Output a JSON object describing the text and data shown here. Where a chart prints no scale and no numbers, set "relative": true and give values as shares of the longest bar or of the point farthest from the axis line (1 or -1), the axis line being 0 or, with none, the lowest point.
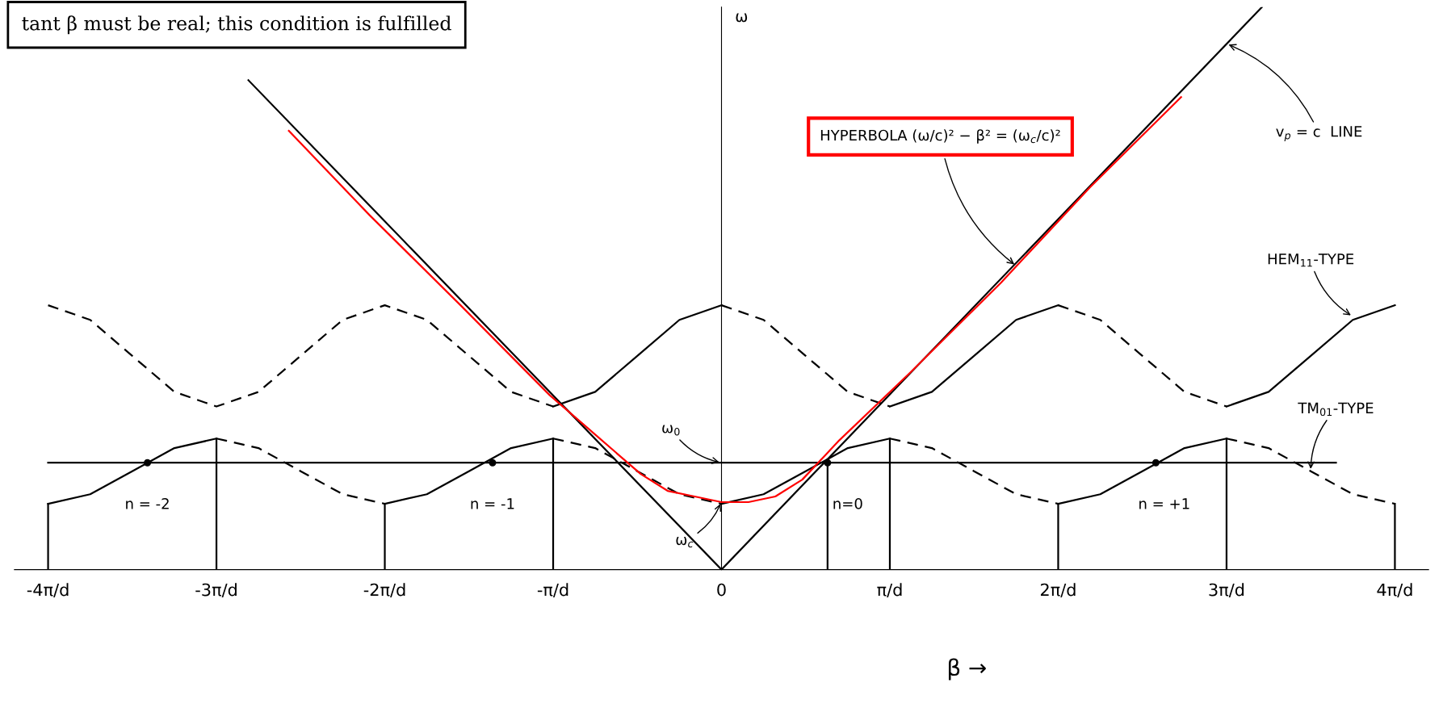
{
  "chart_data": {
    "type": "line",
    "relative": true,
    "ylabel": "ω",
    "xlabel": "β →",
    "xlim": [
      -4.2,
      4.2
    ],
    "xticks": [
      {
        "value": -4,
        "label": "-4π/d"
      },
      {
        "value": -3,
        "label": "-3π/d"
      },
      {
        "value": -2,
        "label": "-2π/d"
      },
      {
        "value": -1,
        "label": "-π/d"
      },
      0,
      {
        "value": 1,
        "label": "π/d"
      },
      {
        "value": 2,
        "label": "2π/d"
      },
      {
        "value": 3,
        "label": "3π/d"
      },
      {
        "value": 4,
        "label": "4π/d"
      }
    ],
    "tick_labels": "x",
    "grid": false,
    "legend": false,
    "marker": "none",
    "series": [
      {
        "type": "line",
        "color": "#000000",
        "line_style": "solid",
        "x": [
          -2.81,
          0,
          3.21
        ],
        "values": [
          0.87,
          0,
          1
        ]
      },
      {
        "type": "line",
        "color": "#000000",
        "line_style": "solid",
        "x": [
          -4,
          3.65
        ],
        "values": [
          0.19,
          0.19
        ]
      },
      {
        "color": "#000000",
        "line_style": "solid",
        "x": [
          -4,
          -4
        ],
        "values": [
          0,
          0.117
        ]
      },
      {
        "color": "#000000",
        "line_style": "solid",
        "x": [
          -3,
          -3
        ],
        "values": [
          0,
          0.233
        ]
      },
      {
        "color": "#000000",
        "line_style": "solid",
        "x": [
          -2,
          -2
        ],
        "values": [
          0,
          0.117
        ]
      },
      {
        "color": "#000000",
        "line_style": "solid",
        "x": [
          -1,
          -1
        ],
        "values": [
          0,
          0.233
        ]
      },
      {
        "color": "#000000",
        "line_style": "solid",
        "x": [
          0.63,
          0.63
        ],
        "values": [
          0,
          0.19
        ]
      },
      {
        "color": "#000000",
        "line_style": "solid",
        "x": [
          1,
          1
        ],
        "values": [
          0,
          0.233
        ]
      },
      {
        "color": "#000000",
        "line_style": "solid",
        "x": [
          2,
          2
        ],
        "values": [
          0,
          0.117
        ]
      },
      {
        "color": "#000000",
        "line_style": "solid",
        "x": [
          3,
          3
        ],
        "values": [
          0,
          0.233
        ]
      },
      {
        "color": "#000000",
        "line_style": "solid",
        "x": [
          4,
          4
        ],
        "values": [
          0,
          0.117
        ]
      },
      {
        "type": "line",
        "color": "#000000",
        "line_style": "dashed",
        "x": [
          -4,
          -3.75,
          -3.5,
          -3.25,
          -3,
          -2.75,
          -2.5,
          -2.25,
          -2,
          -1.75,
          -1.5,
          -1.25,
          -1
        ],
        "values": [
          0.47,
          0.444,
          0.38,
          0.316,
          0.29,
          0.316,
          0.38,
          0.444,
          0.47,
          0.444,
          0.38,
          0.316,
          0.29
        ]
      },
      {
        "type": "line",
        "color": "#000000",
        "line_style": "solid",
        "x": [
          -1,
          -0.75,
          -0.5,
          -0.25,
          0
        ],
        "values": [
          0.29,
          0.316,
          0.38,
          0.444,
          0.47
        ]
      },
      {
        "type": "line",
        "color": "#000000",
        "line_style": "dashed",
        "x": [
          0,
          0.25,
          0.5,
          0.75,
          1
        ],
        "values": [
          0.47,
          0.444,
          0.38,
          0.316,
          0.29
        ]
      },
      {
        "type": "line",
        "color": "#000000",
        "line_style": "solid",
        "x": [
          1,
          1.25,
          1.5,
          1.75,
          2
        ],
        "values": [
          0.29,
          0.316,
          0.38,
          0.444,
          0.47
        ]
      },
      {
        "type": "line",
        "color": "#000000",
        "line_style": "dashed",
        "x": [
          2,
          2.25,
          2.5,
          2.75,
          3
        ],
        "values": [
          0.47,
          0.444,
          0.38,
          0.316,
          0.29
        ]
      },
      {
        "type": "line",
        "color": "#000000",
        "line_style": "solid",
        "x": [
          3,
          3.25,
          3.5,
          3.75,
          4
        ],
        "values": [
          0.29,
          0.316,
          0.38,
          0.444,
          0.47
        ]
      },
      {
        "type": "line",
        "color": "#000000",
        "line_style": "solid",
        "x": [
          -4,
          -3.75,
          -3.5,
          -3.25,
          -3
        ],
        "values": [
          0.117,
          0.134,
          0.175,
          0.216,
          0.233
        ]
      },
      {
        "type": "line",
        "color": "#000000",
        "line_style": "dashed",
        "x": [
          -3,
          -2.75,
          -2.5,
          -2.25,
          -2
        ],
        "values": [
          0.233,
          0.216,
          0.175,
          0.134,
          0.117
        ]
      },
      {
        "type": "line",
        "color": "#000000",
        "line_style": "solid",
        "x": [
          -2,
          -1.75,
          -1.5,
          -1.25,
          -1
        ],
        "values": [
          0.117,
          0.134,
          0.175,
          0.216,
          0.233
        ]
      },
      {
        "type": "line",
        "color": "#000000",
        "line_style": "dashed",
        "x": [
          -1,
          -0.75,
          -0.5,
          -0.25,
          0
        ],
        "values": [
          0.233,
          0.216,
          0.175,
          0.134,
          0.117
        ]
      },
      {
        "type": "line",
        "color": "#000000",
        "line_style": "solid",
        "x": [
          0,
          0.25,
          0.5,
          0.75,
          1
        ],
        "values": [
          0.117,
          0.134,
          0.175,
          0.216,
          0.233
        ]
      },
      {
        "type": "line",
        "color": "#000000",
        "line_style": "dashed",
        "x": [
          1,
          1.25,
          1.5,
          1.75,
          2
        ],
        "values": [
          0.233,
          0.216,
          0.175,
          0.134,
          0.117
        ]
      },
      {
        "type": "line",
        "color": "#000000",
        "line_style": "solid",
        "x": [
          2,
          2.25,
          2.5,
          2.75,
          3
        ],
        "values": [
          0.117,
          0.134,
          0.175,
          0.216,
          0.233
        ]
      },
      {
        "type": "line",
        "color": "#000000",
        "line_style": "dashed",
        "x": [
          3,
          3.25,
          3.5,
          3.75,
          4
        ],
        "values": [
          0.233,
          0.216,
          0.175,
          0.134,
          0.117
        ]
      },
      {
        "type": "line",
        "color": "#ff0000",
        "line_style": "solid",
        "x": [
          -2.57,
          -2.09,
          -1.55,
          -1.02,
          -0.75,
          -0.48,
          -0.32,
          -0.16,
          0,
          0.16,
          0.32,
          0.48,
          0.7,
          1.12,
          1.66,
          2.19,
          2.73
        ],
        "values": [
          0.78,
          0.63,
          0.47,
          0.31,
          0.24,
          0.17,
          0.14,
          0.13,
          0.12,
          0.12,
          0.13,
          0.16,
          0.23,
          0.35,
          0.51,
          0.68,
          0.84
        ]
      },
      {
        "type": "scatter",
        "color": "#000000",
        "marker": "circle",
        "x": [
          -3.41,
          -1.36,
          0.63,
          2.58
        ],
        "values": [
          0.19,
          0.19,
          0.19,
          0.19
        ]
      }
    ],
    "annotations": [
      "tant β must be real; this condition is fulfilled",
      {
        "text": "HYPERBOLA (ω/c)² − β² = (ω$_{c}$/c)²",
        "x": 1.75,
        "y": 0.54
      },
      {
        "text": "v$_{p}$ = c  LINE",
        "x": 3.0,
        "y": 0.935
      },
      {
        "text": "HEM$_{11}$-TYPE",
        "x": 3.75,
        "y": 0.45
      },
      {
        "text": "TM$_{01}$-TYPE",
        "x": 3.5,
        "y": 0.175
      },
      {
        "text": "ω$_{0}$",
        "x": 0,
        "y": 0.19
      },
      {
        "text": "ω$_{c}$",
        "x": 0,
        "y": 0.121
      },
      {
        "text": "n = -2",
        "x": -3.41,
        "y": 0.19
      },
      {
        "text": "n = -1",
        "x": -1.36,
        "y": 0.19
      },
      {
        "text": "n=0",
        "x": 0.63,
        "y": 0.19
      },
      {
        "text": "n = +1",
        "x": 2.58,
        "y": 0.19
      }
    ]
  }
}
